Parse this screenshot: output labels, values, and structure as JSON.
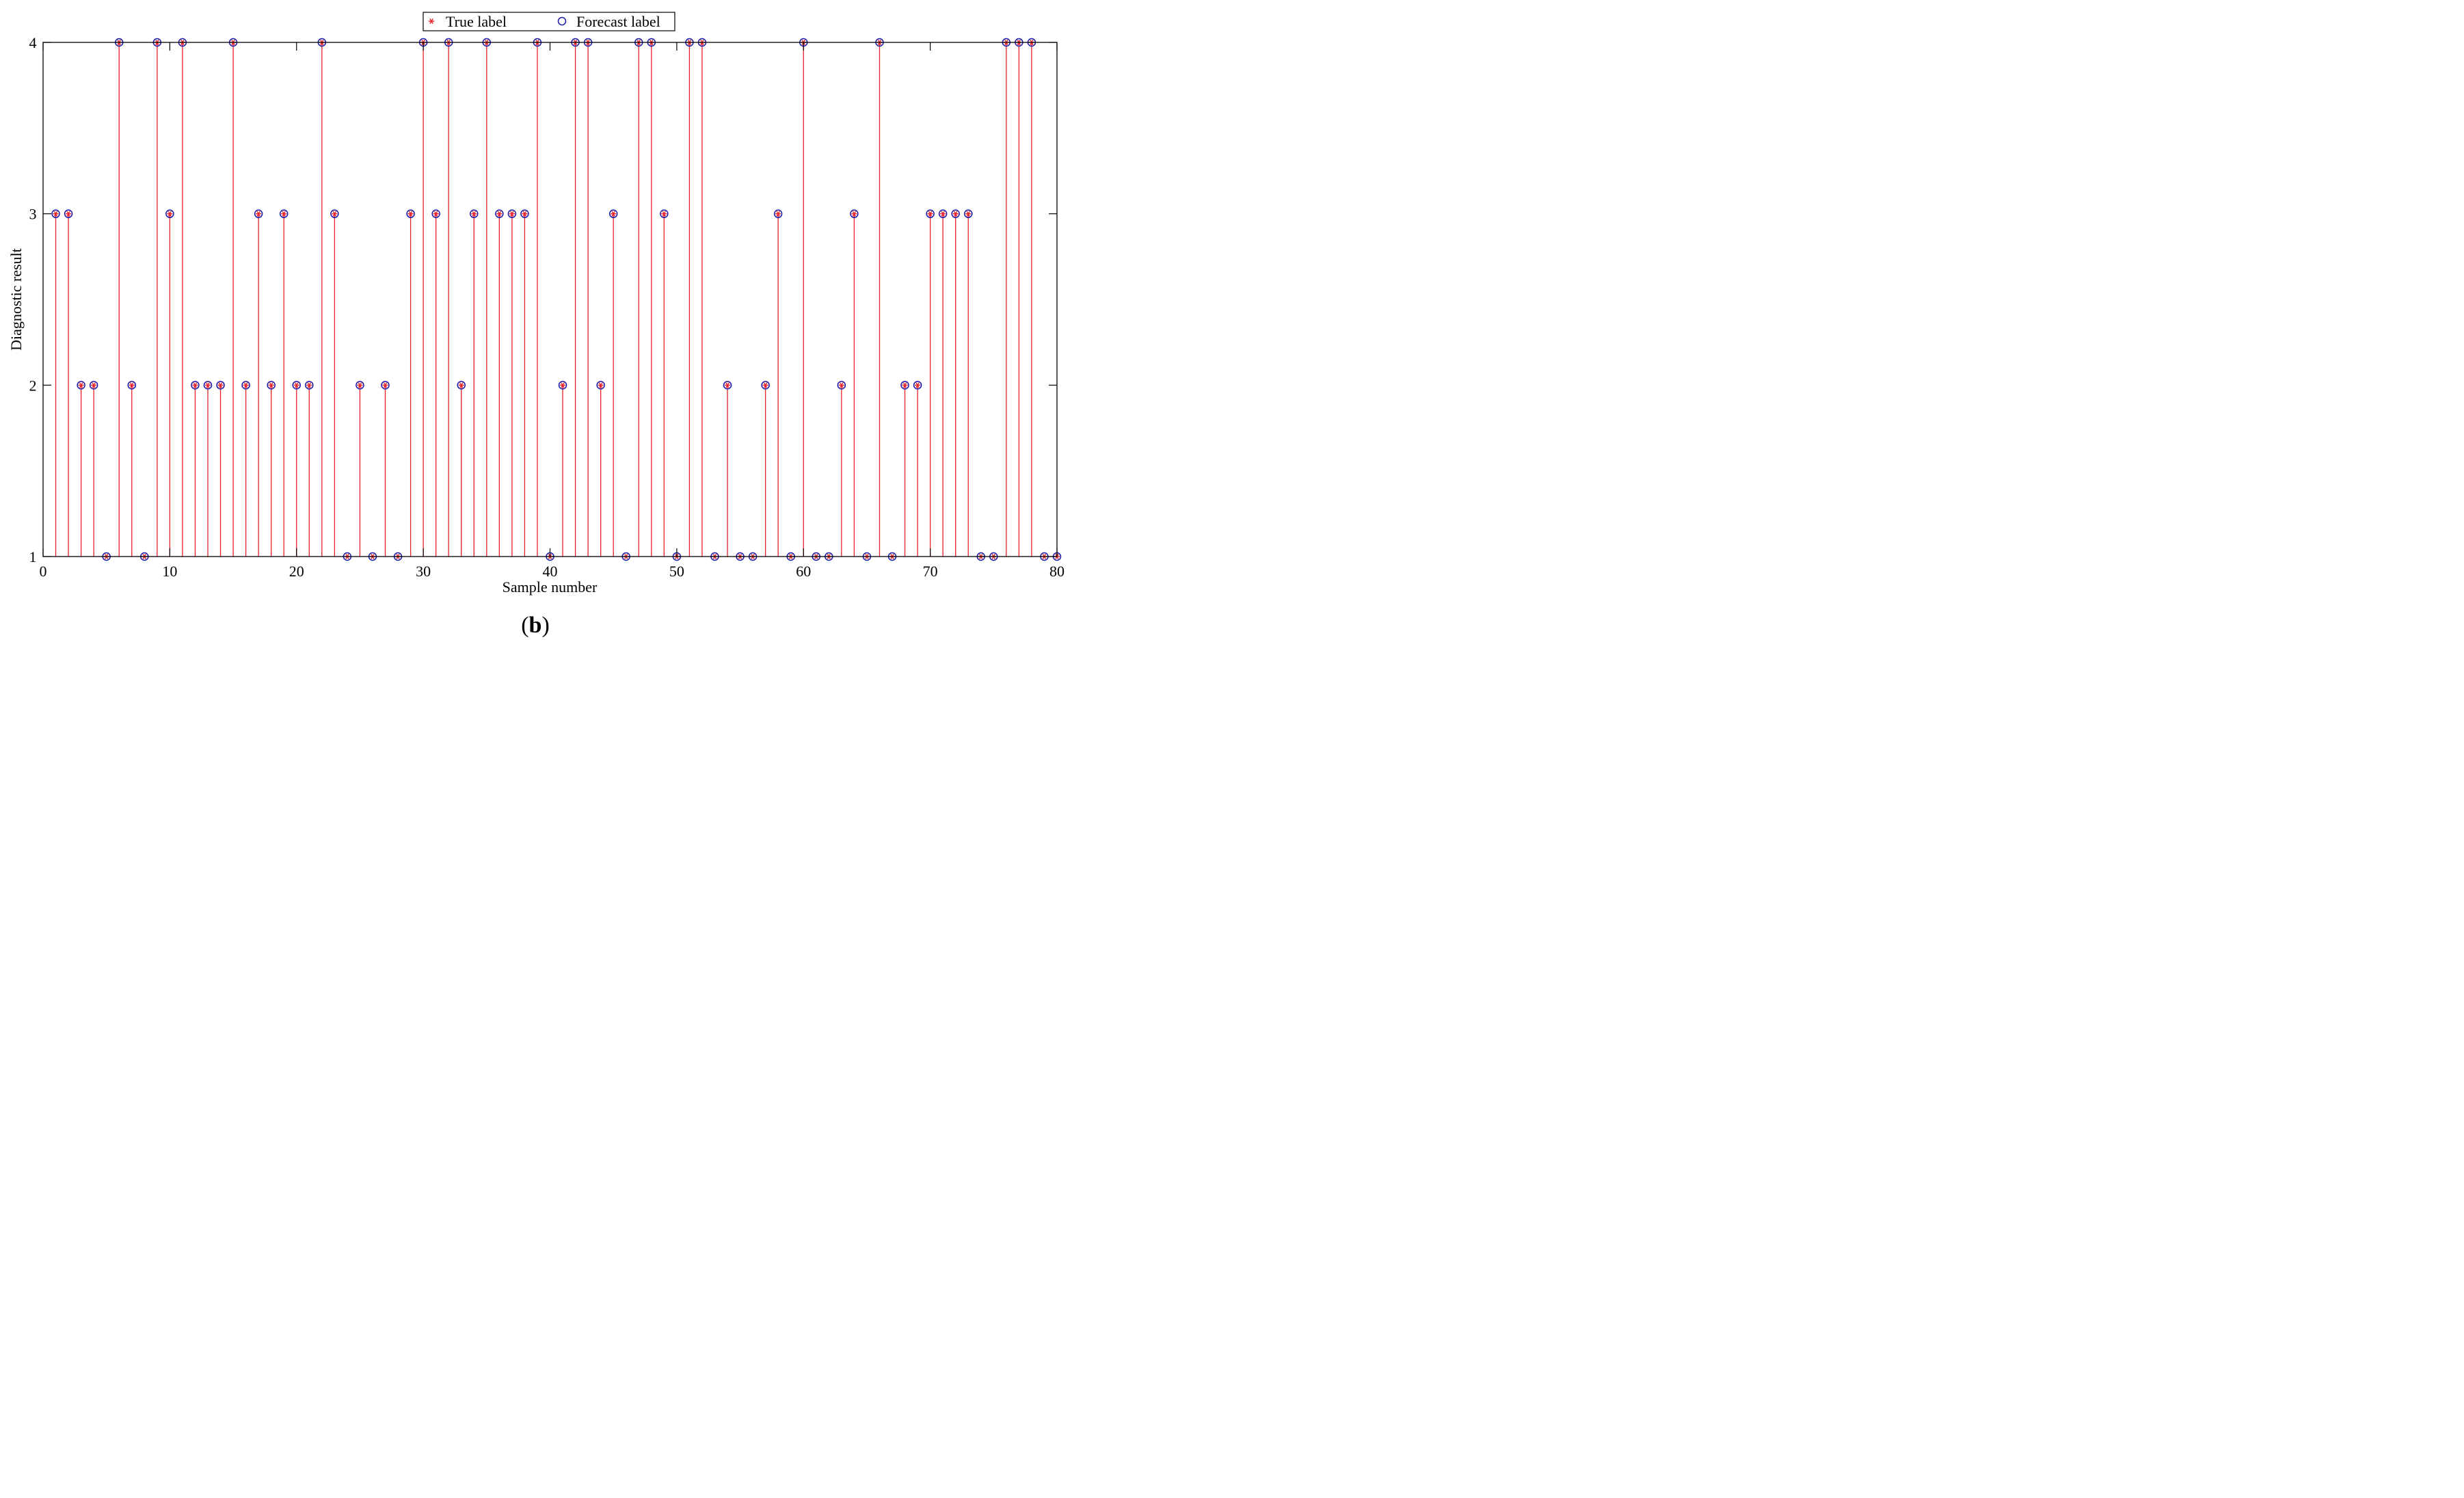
{
  "chart_data": {
    "type": "scatter",
    "style": "stem",
    "xlabel": "Sample number",
    "ylabel": "Diagnostic result",
    "xlim": [
      0,
      80
    ],
    "ylim": [
      1,
      4
    ],
    "xticks": [
      "0",
      "10",
      "20",
      "30",
      "40",
      "50",
      "60",
      "70",
      "80"
    ],
    "yticks": [
      "1",
      "2",
      "3",
      "4"
    ],
    "grid": false,
    "legend_position": "top-center",
    "x": [
      1,
      2,
      3,
      4,
      5,
      6,
      7,
      8,
      9,
      10,
      11,
      12,
      13,
      14,
      15,
      16,
      17,
      18,
      19,
      20,
      21,
      22,
      23,
      24,
      25,
      26,
      27,
      28,
      29,
      30,
      31,
      32,
      33,
      34,
      35,
      36,
      37,
      38,
      39,
      40,
      41,
      42,
      43,
      44,
      45,
      46,
      47,
      48,
      49,
      50,
      51,
      52,
      53,
      54,
      55,
      56,
      57,
      58,
      59,
      60,
      61,
      62,
      63,
      64,
      65,
      66,
      67,
      68,
      69,
      70,
      71,
      72,
      73,
      74,
      75,
      76,
      77,
      78,
      79,
      80
    ],
    "series": [
      {
        "name": "True label",
        "marker": "asterisk",
        "color": "#e8202a",
        "values": [
          3,
          3,
          2,
          2,
          1,
          4,
          2,
          1,
          4,
          3,
          4,
          2,
          2,
          2,
          4,
          2,
          3,
          2,
          3,
          2,
          2,
          4,
          3,
          1,
          2,
          1,
          2,
          1,
          3,
          4,
          3,
          4,
          2,
          3,
          4,
          3,
          3,
          3,
          4,
          1,
          2,
          4,
          4,
          2,
          3,
          1,
          4,
          4,
          3,
          1,
          4,
          4,
          1,
          2,
          1,
          1,
          2,
          3,
          1,
          4,
          1,
          1,
          2,
          3,
          1,
          4,
          1,
          2,
          2,
          3,
          3,
          3,
          3,
          1,
          1,
          4,
          4,
          4,
          1,
          1
        ]
      },
      {
        "name": "Forecast label",
        "marker": "circle",
        "color": "#1a1aa8",
        "values": [
          3,
          3,
          2,
          2,
          1,
          4,
          2,
          1,
          4,
          3,
          4,
          2,
          2,
          2,
          4,
          2,
          3,
          2,
          3,
          2,
          2,
          4,
          3,
          1,
          2,
          1,
          2,
          1,
          3,
          4,
          3,
          4,
          2,
          3,
          4,
          3,
          3,
          3,
          4,
          1,
          2,
          4,
          4,
          2,
          3,
          1,
          4,
          4,
          3,
          1,
          4,
          4,
          1,
          2,
          1,
          1,
          2,
          3,
          1,
          4,
          1,
          1,
          2,
          3,
          1,
          4,
          1,
          2,
          2,
          3,
          3,
          3,
          3,
          1,
          1,
          4,
          4,
          4,
          1,
          1
        ]
      }
    ]
  },
  "caption": {
    "open": "(",
    "letter": "b",
    "close": ")"
  }
}
